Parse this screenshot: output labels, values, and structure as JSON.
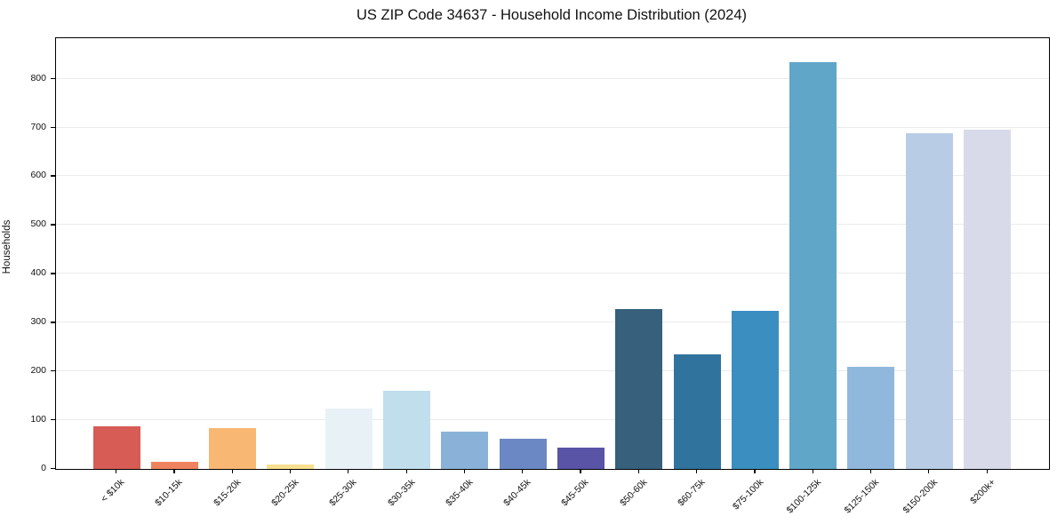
{
  "figure": {
    "background": "#ffffff",
    "axis_color": "#000000",
    "grid_color": "#ebebeb"
  },
  "chart_data": {
    "type": "bar",
    "title": "US ZIP Code 34637 - Household Income Distribution (2024)",
    "xlabel": "",
    "ylabel": "Households",
    "categories": [
      "< $10k",
      "$10-15k",
      "$15-20k",
      "$20-25k",
      "$25-30k",
      "$30-35k",
      "$35-40k",
      "$40-45k",
      "$45-50k",
      "$50-60k",
      "$60-75k",
      "$75-100k",
      "$100-125k",
      "$125-150k",
      "$150-200k",
      "$200k+"
    ],
    "values": [
      87,
      15,
      84,
      9,
      123,
      161,
      76,
      62,
      43,
      327,
      235,
      325,
      833,
      209,
      688,
      695
    ],
    "bar_colors": [
      "#d65c55",
      "#f0835f",
      "#f8b873",
      "#f9e08e",
      "#e8f2f6",
      "#c0deec",
      "#8ab2d8",
      "#6c88c4",
      "#5954a6",
      "#36607c",
      "#30739c",
      "#3a8ec0",
      "#60a6c8",
      "#90b8dc",
      "#b9cce6",
      "#d8dae9"
    ],
    "ylim": [
      0,
      883
    ],
    "yticks": [
      0,
      100,
      200,
      300,
      400,
      500,
      600,
      700,
      800
    ],
    "grid": "horizontal",
    "legend": "none"
  }
}
